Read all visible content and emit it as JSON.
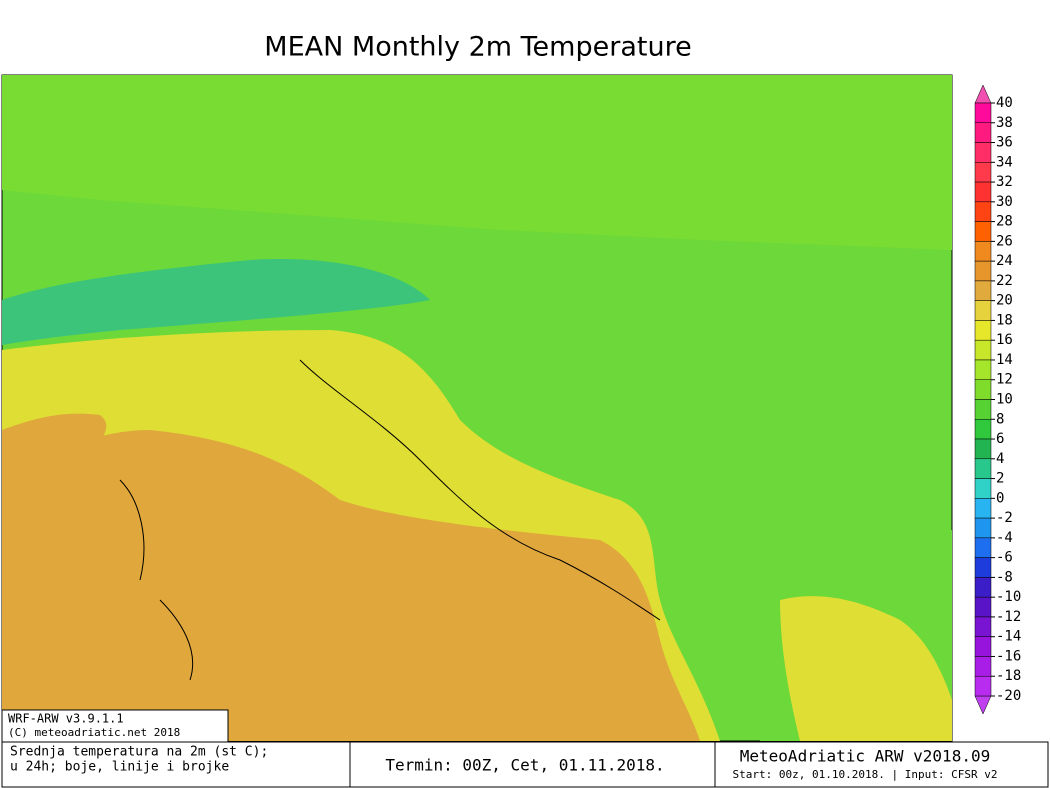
{
  "title": "MEAN Monthly 2m Temperature",
  "colorbar": {
    "levels": [
      40,
      38,
      36,
      34,
      32,
      30,
      28,
      26,
      24,
      22,
      20,
      18,
      16,
      14,
      12,
      10,
      8,
      6,
      4,
      2,
      0,
      -2,
      -4,
      -6,
      -8,
      -10,
      -12,
      -14,
      -16,
      -18,
      -20
    ],
    "colors": [
      "#ff0a9a",
      "#ff1a80",
      "#ff2e66",
      "#ff3a4a",
      "#ff3232",
      "#ff4414",
      "#ff6000",
      "#f08a1e",
      "#e6962a",
      "#e0aa3c",
      "#e6d23c",
      "#e6e62a",
      "#c8e62a",
      "#a6e62a",
      "#80dc2a",
      "#56d232",
      "#30c83c",
      "#22b450",
      "#28c88c",
      "#30d2c8",
      "#28b4f0",
      "#1e96f0",
      "#1e6ef0",
      "#1e3cdc",
      "#3c1ec8",
      "#5a14c8",
      "#7814d2",
      "#9614dc",
      "#a81ee6",
      "#b82cf0"
    ],
    "top_color": "#f050b0",
    "bottom_color": "#c040f0"
  },
  "model_box": {
    "line1": "WRF-ARW v3.9.1.1",
    "line2": "(C) meteoadriatic.net 2018"
  },
  "footer": {
    "description_line1": "Srednja temperatura na 2m (st C);",
    "description_line2": "u 24h; boje, linije i brojke",
    "termin": "Termin: 00Z, Cet, 01.11.2018.",
    "brand": "MeteoAdriatic ARW v2018.09",
    "start": "Start: 00z, 01.10.2018. | Input: CFSR v2"
  }
}
